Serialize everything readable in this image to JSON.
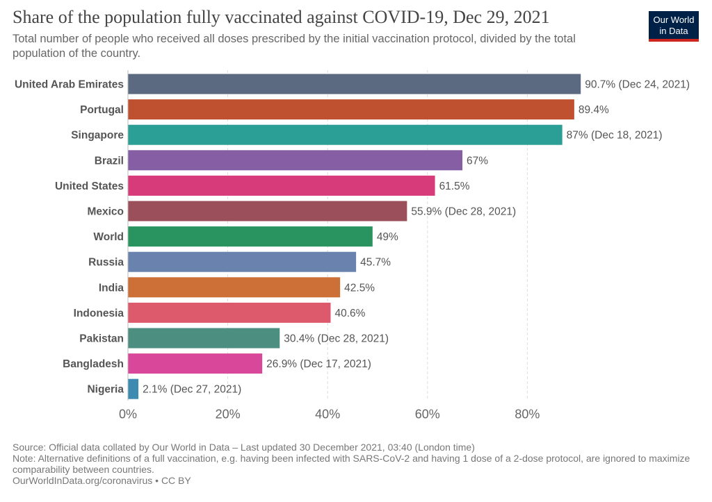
{
  "header": {
    "title": "Share of the population fully vaccinated against COVID-19, Dec 29, 2021",
    "subtitle": "Total number of people who received all doses prescribed by the initial vaccination protocol, divided by the total population of the country.",
    "logo_line1": "Our World",
    "logo_line2": "in Data"
  },
  "footer": {
    "source": "Source: Official data collated by Our World in Data – Last updated 30 December 2021, 03:40 (London time)",
    "note": "Note: Alternative definitions of a full vaccination, e.g. having been infected with SARS-CoV-2 and having 1 dose of a 2-dose protocol, are ignored to maximize comparability between countries.",
    "credit": "OurWorldInData.org/coronavirus • CC BY"
  },
  "chart_data": {
    "type": "bar",
    "orientation": "horizontal",
    "title": "Share of the population fully vaccinated against COVID-19, Dec 29, 2021",
    "xlim": [
      0,
      100
    ],
    "xticks": [
      0,
      20,
      40,
      60,
      80
    ],
    "xtick_labels": [
      "0%",
      "20%",
      "40%",
      "60%",
      "80%"
    ],
    "grid": true,
    "bars": [
      {
        "category": "United Arab Emirates",
        "value": 90.7,
        "label": "90.7% (Dec 24, 2021)",
        "color": "#5b6a80"
      },
      {
        "category": "Portugal",
        "value": 89.4,
        "label": "89.4%",
        "color": "#bf5130"
      },
      {
        "category": "Singapore",
        "value": 87,
        "label": "87% (Dec 18, 2021)",
        "color": "#2b9e95"
      },
      {
        "category": "Brazil",
        "value": 67,
        "label": "67%",
        "color": "#865ea4"
      },
      {
        "category": "United States",
        "value": 61.5,
        "label": "61.5%",
        "color": "#d73b7a"
      },
      {
        "category": "Mexico",
        "value": 55.9,
        "label": "55.9% (Dec 28, 2021)",
        "color": "#9b4f5a"
      },
      {
        "category": "World",
        "value": 49,
        "label": "49%",
        "color": "#2a9460"
      },
      {
        "category": "Russia",
        "value": 45.7,
        "label": "45.7%",
        "color": "#6a83ae"
      },
      {
        "category": "India",
        "value": 42.5,
        "label": "42.5%",
        "color": "#cd7038"
      },
      {
        "category": "Indonesia",
        "value": 40.6,
        "label": "40.6%",
        "color": "#dd5a6d"
      },
      {
        "category": "Pakistan",
        "value": 30.4,
        "label": "30.4% (Dec 28, 2021)",
        "color": "#4c8e7f"
      },
      {
        "category": "Bangladesh",
        "value": 26.9,
        "label": "26.9% (Dec 17, 2021)",
        "color": "#d84799"
      },
      {
        "category": "Nigeria",
        "value": 2.1,
        "label": "2.1% (Dec 27, 2021)",
        "color": "#3d8bb1"
      }
    ]
  }
}
